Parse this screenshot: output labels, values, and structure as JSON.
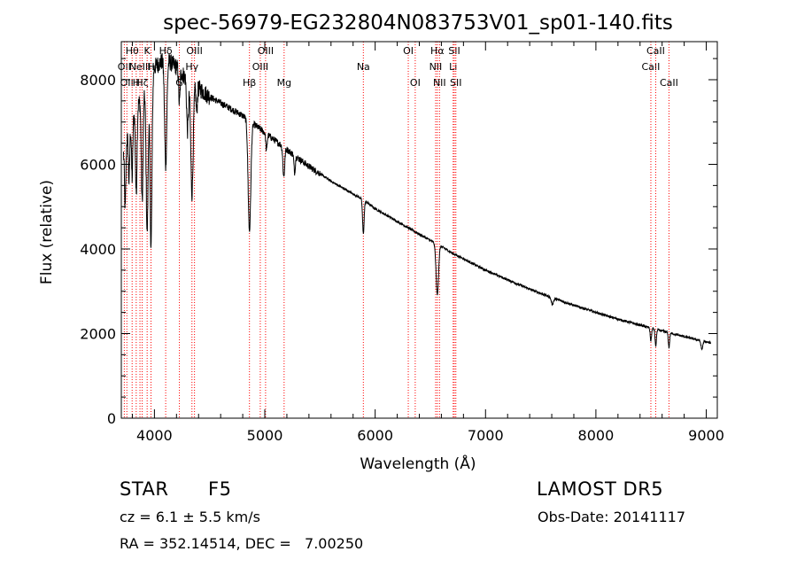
{
  "chart_data": {
    "type": "line",
    "title": "spec-56979-EG232804N083753V01_sp01-140.fits",
    "xlabel": "Wavelength (Å)",
    "ylabel": "Flux (relative)",
    "xlim": [
      3700,
      9100
    ],
    "ylim": [
      0,
      8900
    ],
    "xticks": [
      4000,
      5000,
      6000,
      7000,
      8000,
      9000
    ],
    "yticks": [
      0,
      2000,
      4000,
      6000,
      8000
    ],
    "grid": false,
    "line_color": "#000000",
    "marker_color": "#ff0000",
    "continuum": {
      "x": [
        3720,
        3800,
        3900,
        4000,
        4100,
        4200,
        4300,
        4400,
        4500,
        4600,
        4700,
        4800,
        4900,
        5000,
        5100,
        5200,
        5300,
        5400,
        5500,
        5600,
        5700,
        5800,
        5900,
        6000,
        6100,
        6200,
        6300,
        6400,
        6500,
        6600,
        6700,
        6800,
        6900,
        7000,
        7200,
        7400,
        7600,
        7800,
        8000,
        8200,
        8400,
        8500,
        8600,
        8800,
        9000,
        9040
      ],
      "y": [
        6300,
        7100,
        7700,
        8300,
        8500,
        8300,
        8000,
        7800,
        7600,
        7450,
        7300,
        7150,
        6950,
        6750,
        6550,
        6350,
        6150,
        5950,
        5780,
        5600,
        5450,
        5300,
        5150,
        4950,
        4800,
        4650,
        4500,
        4350,
        4200,
        4060,
        3900,
        3770,
        3630,
        3500,
        3270,
        3050,
        2850,
        2670,
        2500,
        2340,
        2200,
        2130,
        2060,
        1930,
        1800,
        1780
      ]
    },
    "absorption_features": [
      {
        "x": 3735,
        "depth": 1500,
        "width": 6
      },
      {
        "x": 3770,
        "depth": 1200,
        "width": 6
      },
      {
        "x": 3798,
        "depth": 1400,
        "width": 6
      },
      {
        "x": 3835,
        "depth": 2000,
        "width": 7
      },
      {
        "x": 3889,
        "depth": 2500,
        "width": 8
      },
      {
        "x": 3934,
        "depth": 3500,
        "width": 9
      },
      {
        "x": 3969,
        "depth": 4000,
        "width": 9
      },
      {
        "x": 4102,
        "depth": 2500,
        "width": 10
      },
      {
        "x": 4226,
        "depth": 800,
        "width": 6
      },
      {
        "x": 4300,
        "depth": 1200,
        "width": 8
      },
      {
        "x": 4340,
        "depth": 2600,
        "width": 11
      },
      {
        "x": 4383,
        "depth": 600,
        "width": 6
      },
      {
        "x": 4861,
        "depth": 2600,
        "width": 12
      },
      {
        "x": 5015,
        "depth": 400,
        "width": 6
      },
      {
        "x": 5172,
        "depth": 700,
        "width": 8
      },
      {
        "x": 5270,
        "depth": 400,
        "width": 6
      },
      {
        "x": 5893,
        "depth": 800,
        "width": 7
      },
      {
        "x": 6563,
        "depth": 1200,
        "width": 11
      },
      {
        "x": 7605,
        "depth": 150,
        "width": 10
      },
      {
        "x": 8498,
        "depth": 300,
        "width": 6
      },
      {
        "x": 8542,
        "depth": 400,
        "width": 6
      },
      {
        "x": 8662,
        "depth": 350,
        "width": 6
      },
      {
        "x": 8960,
        "depth": 200,
        "width": 8
      }
    ],
    "line_markers": [
      {
        "x": 3727,
        "label": "OII",
        "row": 1
      },
      {
        "x": 3750,
        "label": "OII",
        "row": 2
      },
      {
        "x": 3798,
        "label": "Hθ",
        "row": 0
      },
      {
        "x": 3835,
        "label": "H",
        "row": 2
      },
      {
        "x": 3869,
        "label": "NeIII",
        "row": 1
      },
      {
        "x": 3889,
        "label": "Hζ",
        "row": 2
      },
      {
        "x": 3934,
        "label": "K",
        "row": 0
      },
      {
        "x": 3969,
        "label": "H",
        "row": 1
      },
      {
        "x": 4102,
        "label": "Hδ",
        "row": 0
      },
      {
        "x": 4226,
        "label": "G",
        "row": 2
      },
      {
        "x": 4340,
        "label": "Hγ",
        "row": 1
      },
      {
        "x": 4363,
        "label": "OIII",
        "row": 0
      },
      {
        "x": 4861,
        "label": "Hβ",
        "row": 2
      },
      {
        "x": 4959,
        "label": "OIII",
        "row": 1
      },
      {
        "x": 5007,
        "label": "OIII",
        "row": 0
      },
      {
        "x": 5175,
        "label": "Mg",
        "row": 2
      },
      {
        "x": 5893,
        "label": "Na",
        "row": 1
      },
      {
        "x": 6300,
        "label": "OI",
        "row": 0
      },
      {
        "x": 6363,
        "label": "OI",
        "row": 2
      },
      {
        "x": 6548,
        "label": "NII",
        "row": 1
      },
      {
        "x": 6563,
        "label": "Hα",
        "row": 0
      },
      {
        "x": 6583,
        "label": "NII",
        "row": 2
      },
      {
        "x": 6707,
        "label": "Li",
        "row": 1
      },
      {
        "x": 6717,
        "label": "SII",
        "row": 0
      },
      {
        "x": 6731,
        "label": "SII",
        "row": 2
      },
      {
        "x": 8498,
        "label": "CaII",
        "row": 1
      },
      {
        "x": 8542,
        "label": "CaII",
        "row": 0
      },
      {
        "x": 8662,
        "label": "CaII",
        "row": 2
      }
    ]
  },
  "info": {
    "object_class": "STAR",
    "subclass": "F5",
    "survey": "LAMOST DR5",
    "cz": "cz = 6.1 ± 5.5 km/s",
    "obs_date": "Obs-Date: 20141117",
    "coords": "RA = 352.14514, DEC =   7.00250"
  }
}
